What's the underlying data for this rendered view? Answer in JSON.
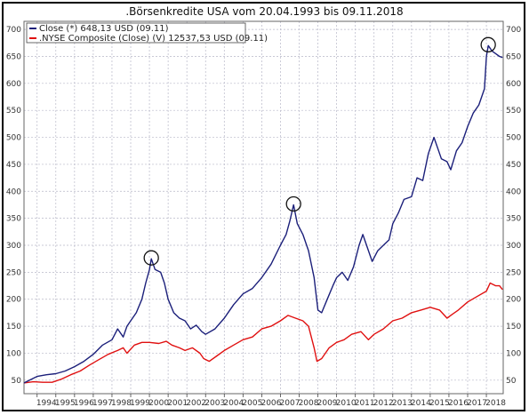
{
  "chart_data": {
    "type": "line",
    "title": ".Börsenkredite USA vom 20.04.1993 bis 09.11.2018",
    "xlabel": "",
    "ylabel": "",
    "ylim": [
      25,
      715
    ],
    "xlim": [
      1993.3,
      2018.9
    ],
    "yticks": [
      50,
      100,
      150,
      200,
      250,
      300,
      350,
      400,
      450,
      500,
      550,
      600,
      650,
      700
    ],
    "xticks": [
      "1994",
      "1995",
      "1996",
      "1997",
      "1998",
      "1999",
      "2000",
      "2001",
      "2002",
      "2003",
      "2004",
      "2005",
      "2006",
      "2007",
      "2008",
      "2009",
      "2010",
      "2011",
      "2012",
      "2013",
      "2014",
      "2015",
      "2016",
      "2017",
      "2018"
    ],
    "grid": true,
    "legend_placement": "top-left",
    "series": [
      {
        "name": "Close (*) 648,13 USD (09.11)",
        "color": "#1b1f7a",
        "x": [
          1993.3,
          1993.6,
          1994.0,
          1994.5,
          1995.0,
          1995.5,
          1996.0,
          1996.5,
          1997.0,
          1997.5,
          1998.0,
          1998.3,
          1998.6,
          1998.8,
          1999.0,
          1999.3,
          1999.6,
          1999.8,
          2000.0,
          2000.1,
          2000.3,
          2000.6,
          2000.8,
          2001.0,
          2001.3,
          2001.6,
          2001.9,
          2002.2,
          2002.5,
          2002.8,
          2003.0,
          2003.5,
          2004.0,
          2004.5,
          2005.0,
          2005.5,
          2006.0,
          2006.5,
          2007.0,
          2007.3,
          2007.5,
          2007.7,
          2007.9,
          2008.2,
          2008.5,
          2008.8,
          2009.0,
          2009.2,
          2009.5,
          2009.8,
          2010.0,
          2010.3,
          2010.6,
          2010.9,
          2011.2,
          2011.4,
          2011.6,
          2011.9,
          2012.2,
          2012.5,
          2012.8,
          2013.0,
          2013.3,
          2013.6,
          2014.0,
          2014.3,
          2014.6,
          2014.9,
          2015.2,
          2015.4,
          2015.6,
          2015.9,
          2016.1,
          2016.4,
          2016.7,
          2017.0,
          2017.3,
          2017.6,
          2017.9,
          2018.0,
          2018.1,
          2018.3,
          2018.5,
          2018.7,
          2018.86
        ],
        "values": [
          45,
          50,
          57,
          60,
          62,
          67,
          75,
          85,
          98,
          115,
          125,
          145,
          130,
          150,
          160,
          175,
          200,
          230,
          255,
          275,
          255,
          250,
          230,
          200,
          175,
          165,
          160,
          145,
          152,
          140,
          135,
          145,
          165,
          190,
          210,
          220,
          240,
          265,
          300,
          320,
          345,
          375,
          340,
          320,
          290,
          240,
          180,
          175,
          200,
          225,
          240,
          250,
          235,
          260,
          300,
          320,
          300,
          270,
          290,
          300,
          310,
          340,
          360,
          385,
          390,
          425,
          420,
          470,
          500,
          480,
          460,
          455,
          440,
          475,
          490,
          520,
          545,
          560,
          590,
          650,
          670,
          660,
          655,
          650,
          648
        ]
      },
      {
        "name": ".NYSE Composite (Close) (V) 12537,53 USD (09.11)",
        "color": "#e01010",
        "x": [
          1993.3,
          1993.8,
          1994.3,
          1994.8,
          1995.3,
          1995.8,
          1996.3,
          1996.8,
          1997.3,
          1997.8,
          1998.3,
          1998.6,
          1998.8,
          1999.2,
          1999.6,
          2000.0,
          2000.5,
          2000.9,
          2001.2,
          2001.6,
          2001.9,
          2002.3,
          2002.7,
          2002.9,
          2003.2,
          2003.6,
          2004.0,
          2004.5,
          2005.0,
          2005.5,
          2006.0,
          2006.5,
          2007.0,
          2007.4,
          2007.8,
          2008.2,
          2008.5,
          2008.8,
          2008.95,
          2009.2,
          2009.6,
          2010.0,
          2010.4,
          2010.8,
          2011.3,
          2011.7,
          2012.0,
          2012.5,
          2013.0,
          2013.5,
          2014.0,
          2014.5,
          2015.0,
          2015.5,
          2015.9,
          2016.1,
          2016.5,
          2017.0,
          2017.5,
          2018.0,
          2018.2,
          2018.5,
          2018.7,
          2018.86
        ],
        "values": [
          45,
          47,
          46,
          46,
          52,
          60,
          67,
          78,
          88,
          98,
          105,
          110,
          100,
          115,
          120,
          120,
          118,
          122,
          115,
          110,
          105,
          110,
          100,
          90,
          85,
          95,
          105,
          115,
          125,
          130,
          145,
          150,
          160,
          170,
          165,
          160,
          150,
          110,
          85,
          90,
          110,
          120,
          125,
          135,
          140,
          125,
          135,
          145,
          160,
          165,
          175,
          180,
          185,
          180,
          165,
          170,
          180,
          195,
          205,
          215,
          230,
          225,
          225,
          218
        ]
      }
    ]
  }
}
